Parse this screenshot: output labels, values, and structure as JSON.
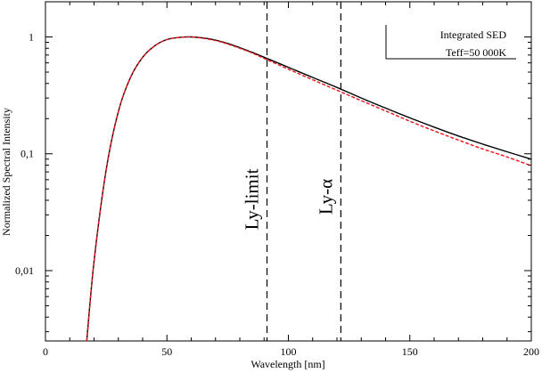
{
  "chart_data": {
    "type": "line",
    "title": "",
    "xlabel": "Wavelength [nm]",
    "ylabel": "Normalized Spectral Intensity",
    "xlim": [
      0,
      200
    ],
    "ylim": [
      0.0025,
      2
    ],
    "yscale": "log",
    "x_ticks": [
      0,
      50,
      100,
      150,
      200
    ],
    "y_ticks": [
      0.01,
      0.1,
      1
    ],
    "x_tick_labels": [
      "0",
      "50",
      "100",
      "150",
      "200"
    ],
    "y_tick_labels": [
      "0,01",
      "0,1",
      "1"
    ],
    "grid": false,
    "legend": {
      "placement": "top-right",
      "lines": [
        "Integrated SED",
        "Teff=50 000K"
      ]
    },
    "annotations": [
      {
        "text": "Ly-limit",
        "x": 91.2
      },
      {
        "text": "Ly-α",
        "x": 121.6
      }
    ],
    "series": [
      {
        "color": "#000000",
        "style": "solid",
        "x": [
          17,
          20,
          25,
          30,
          35,
          40,
          45,
          50,
          55,
          60,
          65,
          70,
          75,
          80,
          85,
          90,
          100,
          110,
          120,
          130,
          140,
          150,
          160,
          170,
          180,
          190,
          200
        ],
        "y": [
          0.0025,
          0.012,
          0.073,
          0.23,
          0.45,
          0.67,
          0.84,
          0.95,
          0.99,
          1.0,
          0.98,
          0.94,
          0.88,
          0.81,
          0.74,
          0.67,
          0.55,
          0.45,
          0.37,
          0.3,
          0.246,
          0.203,
          0.169,
          0.142,
          0.121,
          0.104,
          0.09
        ]
      },
      {
        "color": "#e8131b",
        "style": "dashed",
        "x": [
          17,
          20,
          25,
          30,
          35,
          40,
          45,
          50,
          55,
          60,
          65,
          70,
          75,
          80,
          85,
          90,
          100,
          110,
          120,
          130,
          140,
          150,
          160,
          170,
          180,
          190,
          200
        ],
        "y": [
          0.0025,
          0.012,
          0.073,
          0.23,
          0.45,
          0.67,
          0.84,
          0.95,
          0.99,
          1.0,
          0.975,
          0.93,
          0.87,
          0.8,
          0.73,
          0.655,
          0.53,
          0.43,
          0.35,
          0.285,
          0.233,
          0.19,
          0.157,
          0.131,
          0.11,
          0.094,
          0.079
        ]
      }
    ]
  }
}
